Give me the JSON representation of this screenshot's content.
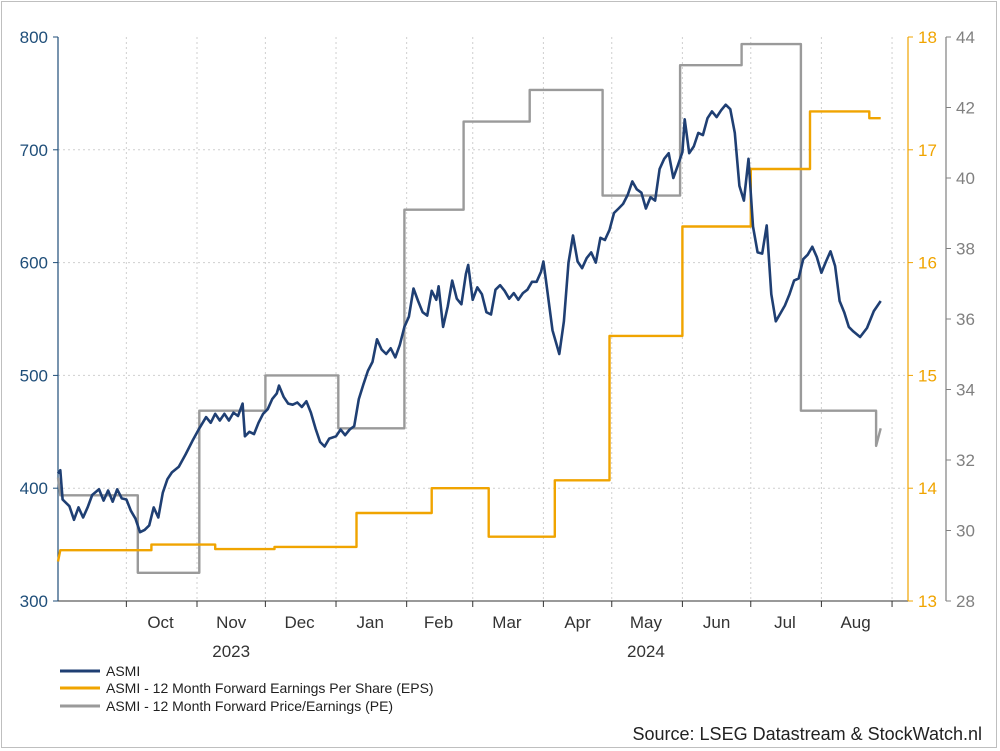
{
  "chart_data": {
    "type": "line",
    "axes": {
      "left": {
        "min": 300,
        "max": 800,
        "ticks": [
          300,
          400,
          500,
          600,
          700,
          800
        ],
        "color": "#1f4e79"
      },
      "right_eps": {
        "min": 13,
        "max": 18,
        "ticks": [
          13,
          14,
          15,
          16,
          17,
          18
        ],
        "color": "#f0a400"
      },
      "right_pe": {
        "min": 28,
        "max": 44,
        "ticks": [
          28,
          30,
          32,
          34,
          36,
          38,
          40,
          42,
          44
        ],
        "color": "#808080"
      }
    },
    "x_range": [
      "2023-09-01",
      "2024-09-08"
    ],
    "month_labels": [
      {
        "label": "Oct",
        "date": "2023-10-16"
      },
      {
        "label": "Nov",
        "date": "2023-11-16"
      },
      {
        "label": "Dec",
        "date": "2023-12-16"
      },
      {
        "label": "Jan",
        "date": "2024-01-16"
      },
      {
        "label": "Feb",
        "date": "2024-02-15"
      },
      {
        "label": "Mar",
        "date": "2024-03-16"
      },
      {
        "label": "Apr",
        "date": "2024-04-16"
      },
      {
        "label": "May",
        "date": "2024-05-16"
      },
      {
        "label": "Jun",
        "date": "2024-06-16"
      },
      {
        "label": "Jul",
        "date": "2024-07-16"
      },
      {
        "label": "Aug",
        "date": "2024-08-16"
      }
    ],
    "month_boundaries": [
      "2023-10-01",
      "2023-11-01",
      "2023-12-01",
      "2024-01-01",
      "2024-02-01",
      "2024-03-01",
      "2024-04-01",
      "2024-05-01",
      "2024-06-01",
      "2024-07-01",
      "2024-08-01",
      "2024-09-01"
    ],
    "year_labels": [
      {
        "label": "2023",
        "date": "2023-11-16"
      },
      {
        "label": "2024",
        "date": "2024-05-16"
      }
    ],
    "grid": true,
    "series": [
      {
        "name": "ASMI",
        "axis": "left",
        "color": "#1f3f73",
        "points": [
          [
            "2023-09-01",
            413
          ],
          [
            "2023-09-02",
            416
          ],
          [
            "2023-09-03",
            390
          ],
          [
            "2023-09-06",
            384
          ],
          [
            "2023-09-08",
            372
          ],
          [
            "2023-09-10",
            383
          ],
          [
            "2023-09-12",
            374
          ],
          [
            "2023-09-14",
            383
          ],
          [
            "2023-09-16",
            394
          ],
          [
            "2023-09-19",
            399
          ],
          [
            "2023-09-21",
            389
          ],
          [
            "2023-09-23",
            398
          ],
          [
            "2023-09-25",
            388
          ],
          [
            "2023-09-27",
            399
          ],
          [
            "2023-09-29",
            391
          ],
          [
            "2023-10-01",
            390
          ],
          [
            "2023-10-03",
            380
          ],
          [
            "2023-10-05",
            373
          ],
          [
            "2023-10-07",
            361
          ],
          [
            "2023-10-09",
            363
          ],
          [
            "2023-10-11",
            367
          ],
          [
            "2023-10-13",
            383
          ],
          [
            "2023-10-15",
            374
          ],
          [
            "2023-10-17",
            396
          ],
          [
            "2023-10-19",
            408
          ],
          [
            "2023-10-21",
            414
          ],
          [
            "2023-10-24",
            419
          ],
          [
            "2023-10-27",
            430
          ],
          [
            "2023-10-30",
            442
          ],
          [
            "2023-11-02",
            453
          ],
          [
            "2023-11-05",
            463
          ],
          [
            "2023-11-07",
            458
          ],
          [
            "2023-11-09",
            466
          ],
          [
            "2023-11-11",
            460
          ],
          [
            "2023-11-13",
            466
          ],
          [
            "2023-11-15",
            460
          ],
          [
            "2023-11-17",
            467
          ],
          [
            "2023-11-19",
            464
          ],
          [
            "2023-11-21",
            475
          ],
          [
            "2023-11-22",
            446
          ],
          [
            "2023-11-24",
            450
          ],
          [
            "2023-11-26",
            448
          ],
          [
            "2023-11-28",
            458
          ],
          [
            "2023-11-30",
            466
          ],
          [
            "2023-12-02",
            470
          ],
          [
            "2023-12-04",
            479
          ],
          [
            "2023-12-06",
            484
          ],
          [
            "2023-12-07",
            491
          ],
          [
            "2023-12-09",
            481
          ],
          [
            "2023-12-11",
            475
          ],
          [
            "2023-12-13",
            474
          ],
          [
            "2023-12-15",
            476
          ],
          [
            "2023-12-17",
            472
          ],
          [
            "2023-12-19",
            477
          ],
          [
            "2023-12-21",
            467
          ],
          [
            "2023-12-23",
            453
          ],
          [
            "2023-12-25",
            441
          ],
          [
            "2023-12-27",
            437
          ],
          [
            "2023-12-29",
            444
          ],
          [
            "2024-01-01",
            446
          ],
          [
            "2024-01-03",
            452
          ],
          [
            "2024-01-05",
            447
          ],
          [
            "2024-01-07",
            452
          ],
          [
            "2024-01-09",
            455
          ],
          [
            "2024-01-11",
            479
          ],
          [
            "2024-01-13",
            492
          ],
          [
            "2024-01-15",
            504
          ],
          [
            "2024-01-17",
            512
          ],
          [
            "2024-01-19",
            532
          ],
          [
            "2024-01-21",
            523
          ],
          [
            "2024-01-23",
            519
          ],
          [
            "2024-01-25",
            524
          ],
          [
            "2024-01-27",
            516
          ],
          [
            "2024-01-29",
            527
          ],
          [
            "2024-01-31",
            543
          ],
          [
            "2024-02-02",
            552
          ],
          [
            "2024-02-04",
            577
          ],
          [
            "2024-02-06",
            566
          ],
          [
            "2024-02-08",
            556
          ],
          [
            "2024-02-10",
            553
          ],
          [
            "2024-02-12",
            575
          ],
          [
            "2024-02-14",
            567
          ],
          [
            "2024-02-15",
            579
          ],
          [
            "2024-02-17",
            543
          ],
          [
            "2024-02-19",
            561
          ],
          [
            "2024-02-21",
            584
          ],
          [
            "2024-02-23",
            568
          ],
          [
            "2024-02-25",
            563
          ],
          [
            "2024-02-27",
            590
          ],
          [
            "2024-02-28",
            598
          ],
          [
            "2024-03-01",
            567
          ],
          [
            "2024-03-03",
            578
          ],
          [
            "2024-03-05",
            572
          ],
          [
            "2024-03-07",
            556
          ],
          [
            "2024-03-09",
            554
          ],
          [
            "2024-03-11",
            576
          ],
          [
            "2024-03-13",
            580
          ],
          [
            "2024-03-15",
            575
          ],
          [
            "2024-03-17",
            568
          ],
          [
            "2024-03-19",
            573
          ],
          [
            "2024-03-21",
            567
          ],
          [
            "2024-03-23",
            573
          ],
          [
            "2024-03-25",
            576
          ],
          [
            "2024-03-27",
            583
          ],
          [
            "2024-03-29",
            583
          ],
          [
            "2024-03-31",
            592
          ],
          [
            "2024-04-01",
            601
          ],
          [
            "2024-04-02",
            586
          ],
          [
            "2024-04-05",
            540
          ],
          [
            "2024-04-08",
            519
          ],
          [
            "2024-04-10",
            548
          ],
          [
            "2024-04-12",
            600
          ],
          [
            "2024-04-14",
            624
          ],
          [
            "2024-04-16",
            601
          ],
          [
            "2024-04-18",
            595
          ],
          [
            "2024-04-20",
            604
          ],
          [
            "2024-04-22",
            609
          ],
          [
            "2024-04-24",
            600
          ],
          [
            "2024-04-26",
            622
          ],
          [
            "2024-04-28",
            620
          ],
          [
            "2024-04-30",
            629
          ],
          [
            "2024-05-02",
            644
          ],
          [
            "2024-05-04",
            648
          ],
          [
            "2024-05-06",
            652
          ],
          [
            "2024-05-08",
            660
          ],
          [
            "2024-05-10",
            672
          ],
          [
            "2024-05-12",
            665
          ],
          [
            "2024-05-14",
            662
          ],
          [
            "2024-05-16",
            648
          ],
          [
            "2024-05-18",
            658
          ],
          [
            "2024-05-20",
            655
          ],
          [
            "2024-05-22",
            683
          ],
          [
            "2024-05-24",
            692
          ],
          [
            "2024-05-26",
            697
          ],
          [
            "2024-05-28",
            675
          ],
          [
            "2024-05-30",
            686
          ],
          [
            "2024-06-01",
            698
          ],
          [
            "2024-06-02",
            727
          ],
          [
            "2024-06-04",
            697
          ],
          [
            "2024-06-06",
            703
          ],
          [
            "2024-06-08",
            715
          ],
          [
            "2024-06-10",
            713
          ],
          [
            "2024-06-12",
            728
          ],
          [
            "2024-06-14",
            734
          ],
          [
            "2024-06-16",
            729
          ],
          [
            "2024-06-18",
            735
          ],
          [
            "2024-06-20",
            740
          ],
          [
            "2024-06-22",
            736
          ],
          [
            "2024-06-24",
            715
          ],
          [
            "2024-06-26",
            668
          ],
          [
            "2024-06-28",
            655
          ],
          [
            "2024-06-30",
            692
          ],
          [
            "2024-07-02",
            632
          ],
          [
            "2024-07-04",
            609
          ],
          [
            "2024-07-06",
            608
          ],
          [
            "2024-07-08",
            633
          ],
          [
            "2024-07-10",
            572
          ],
          [
            "2024-07-12",
            548
          ],
          [
            "2024-07-14",
            555
          ],
          [
            "2024-07-16",
            562
          ],
          [
            "2024-07-18",
            572
          ],
          [
            "2024-07-20",
            584
          ],
          [
            "2024-07-22",
            586
          ],
          [
            "2024-07-24",
            603
          ],
          [
            "2024-07-26",
            607
          ],
          [
            "2024-07-28",
            614
          ],
          [
            "2024-07-30",
            605
          ],
          [
            "2024-08-01",
            591
          ],
          [
            "2024-08-03",
            601
          ],
          [
            "2024-08-05",
            610
          ],
          [
            "2024-08-07",
            597
          ],
          [
            "2024-08-09",
            566
          ],
          [
            "2024-08-11",
            556
          ],
          [
            "2024-08-13",
            543
          ],
          [
            "2024-08-15",
            539
          ],
          [
            "2024-08-18",
            534
          ],
          [
            "2024-08-21",
            542
          ],
          [
            "2024-08-24",
            557
          ],
          [
            "2024-08-27",
            566
          ]
        ]
      },
      {
        "name": "ASMI - 12 Month Forward Earnings Per Share (EPS)",
        "axis": "right_eps",
        "color": "#f0a400",
        "points": [
          [
            "2023-09-01",
            13.35
          ],
          [
            "2023-09-02",
            13.45
          ],
          [
            "2023-10-12",
            13.45
          ],
          [
            "2023-10-12",
            13.5
          ],
          [
            "2023-11-09",
            13.5
          ],
          [
            "2023-11-09",
            13.46
          ],
          [
            "2023-12-05",
            13.46
          ],
          [
            "2023-12-05",
            13.48
          ],
          [
            "2024-01-10",
            13.48
          ],
          [
            "2024-01-10",
            13.78
          ],
          [
            "2024-02-12",
            13.78
          ],
          [
            "2024-02-12",
            14.0
          ],
          [
            "2024-03-08",
            14.0
          ],
          [
            "2024-03-08",
            13.57
          ],
          [
            "2024-04-06",
            13.57
          ],
          [
            "2024-04-06",
            14.07
          ],
          [
            "2024-04-30",
            14.07
          ],
          [
            "2024-04-30",
            15.35
          ],
          [
            "2024-06-01",
            15.35
          ],
          [
            "2024-06-01",
            16.32
          ],
          [
            "2024-07-01",
            16.32
          ],
          [
            "2024-07-01",
            16.83
          ],
          [
            "2024-07-27",
            16.83
          ],
          [
            "2024-07-27",
            17.34
          ],
          [
            "2024-08-22",
            17.34
          ],
          [
            "2024-08-22",
            17.28
          ],
          [
            "2024-08-27",
            17.28
          ]
        ]
      },
      {
        "name": "ASMI - 12 Month Forward Price/Earnings (PE)",
        "axis": "right_pe",
        "color": "#9a9a9a",
        "points": [
          [
            "2023-09-01",
            31.5
          ],
          [
            "2023-09-02",
            31.0
          ],
          [
            "2023-10-06",
            31.0
          ],
          [
            "2023-10-06",
            28.8
          ],
          [
            "2023-11-02",
            28.8
          ],
          [
            "2023-11-02",
            33.4
          ],
          [
            "2023-12-01",
            33.4
          ],
          [
            "2023-12-01",
            34.4
          ],
          [
            "2024-01-02",
            34.4
          ],
          [
            "2024-01-02",
            32.9
          ],
          [
            "2024-01-31",
            32.9
          ],
          [
            "2024-01-31",
            39.1
          ],
          [
            "2024-02-26",
            39.1
          ],
          [
            "2024-02-26",
            41.6
          ],
          [
            "2024-03-26",
            41.6
          ],
          [
            "2024-03-26",
            42.5
          ],
          [
            "2024-04-27",
            42.5
          ],
          [
            "2024-04-27",
            39.5
          ],
          [
            "2024-05-31",
            39.5
          ],
          [
            "2024-05-31",
            43.2
          ],
          [
            "2024-06-27",
            43.2
          ],
          [
            "2024-06-27",
            43.8
          ],
          [
            "2024-07-23",
            43.8
          ],
          [
            "2024-07-23",
            33.4
          ],
          [
            "2024-08-25",
            33.4
          ],
          [
            "2024-08-25",
            32.4
          ],
          [
            "2024-08-27",
            32.9
          ]
        ]
      }
    ]
  },
  "source": "Source: LSEG Datastream & StockWatch.nl"
}
